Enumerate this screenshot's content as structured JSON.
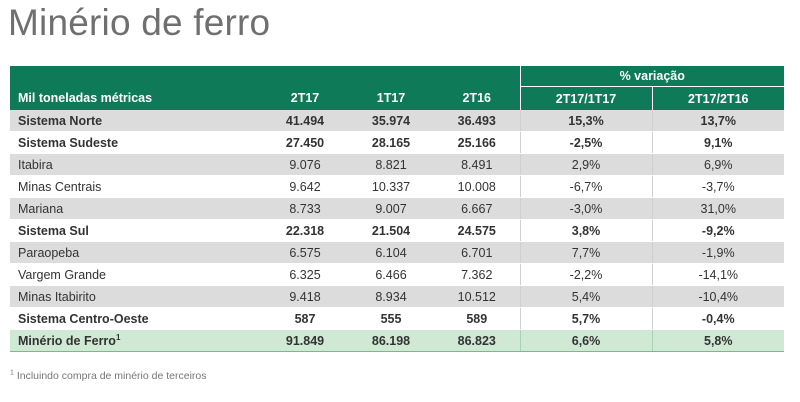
{
  "title": "Minério de ferro",
  "table": {
    "group_header": "% variação",
    "columns": [
      "Mil toneladas métricas",
      "2T17",
      "1T17",
      "2T16",
      "2T17/1T17",
      "2T17/2T16"
    ],
    "rows": [
      {
        "label": "Sistema Norte",
        "values": [
          "41.494",
          "35.974",
          "36.493",
          "15,3%",
          "13,7%"
        ],
        "bold": true,
        "shade": true
      },
      {
        "label": "Sistema Sudeste",
        "values": [
          "27.450",
          "28.165",
          "25.166",
          "-2,5%",
          "9,1%"
        ],
        "bold": true,
        "shade": false
      },
      {
        "label": "Itabira",
        "values": [
          "9.076",
          "8.821",
          "8.491",
          "2,9%",
          "6,9%"
        ],
        "bold": false,
        "shade": true
      },
      {
        "label": "Minas Centrais",
        "values": [
          "9.642",
          "10.337",
          "10.008",
          "-6,7%",
          "-3,7%"
        ],
        "bold": false,
        "shade": false
      },
      {
        "label": "Mariana",
        "values": [
          "8.733",
          "9.007",
          "6.667",
          "-3,0%",
          "31,0%"
        ],
        "bold": false,
        "shade": true
      },
      {
        "label": "Sistema Sul",
        "values": [
          "22.318",
          "21.504",
          "24.575",
          "3,8%",
          "-9,2%"
        ],
        "bold": true,
        "shade": false
      },
      {
        "label": "Paraopeba",
        "values": [
          "6.575",
          "6.104",
          "6.701",
          "7,7%",
          "-1,9%"
        ],
        "bold": false,
        "shade": true
      },
      {
        "label": "Vargem Grande",
        "values": [
          "6.325",
          "6.466",
          "7.362",
          "-2,2%",
          "-14,1%"
        ],
        "bold": false,
        "shade": false
      },
      {
        "label": "Minas Itabirito",
        "values": [
          "9.418",
          "8.934",
          "10.512",
          "5,4%",
          "-10,4%"
        ],
        "bold": false,
        "shade": true
      },
      {
        "label": "Sistema Centro-Oeste",
        "values": [
          "587",
          "555",
          "589",
          "5,7%",
          "-0,4%"
        ],
        "bold": true,
        "shade": false
      }
    ],
    "total": {
      "label": "Minério de Ferro",
      "sup": "1",
      "values": [
        "91.849",
        "86.198",
        "86.823",
        "6,6%",
        "5,8%"
      ]
    }
  },
  "footnote": {
    "sup": "1",
    "text": " Incluindo compra de minério de terceiros"
  },
  "colors": {
    "header_bg": "#0e7a57",
    "shade_bg": "#dcdcdc",
    "total_bg": "#cfe9d5",
    "title": "#6f6f6f"
  }
}
